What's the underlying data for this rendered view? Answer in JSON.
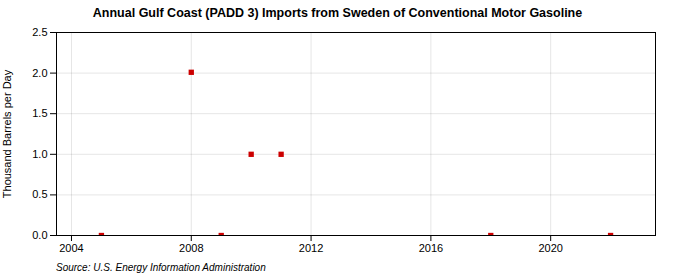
{
  "chart_data": {
    "type": "scatter",
    "title": "Annual Gulf Coast (PADD 3) Imports from Sweden of Conventional Motor Gasoline",
    "ylabel": "Thousand Barrels per Day",
    "caption": "Source: U.S. Energy Information Administration",
    "x": [
      2005,
      2008,
      2009,
      2010,
      2011,
      2018,
      2022
    ],
    "values": [
      0.0,
      2.01,
      0.0,
      1.0,
      1.0,
      0.0,
      0.0
    ],
    "color": "#cc0000",
    "marker": "square",
    "xlim": [
      2003.5,
      2023.5
    ],
    "ylim": [
      0.0,
      2.5
    ],
    "xticks": [
      2004,
      2008,
      2012,
      2016,
      2020
    ],
    "yticks": [
      {
        "value": 0.0,
        "label": "0.0"
      },
      0.5,
      {
        "value": 1.0,
        "label": "1.0"
      },
      1.5,
      {
        "value": 2.0,
        "label": "2.0"
      },
      2.5
    ],
    "grid": true
  }
}
